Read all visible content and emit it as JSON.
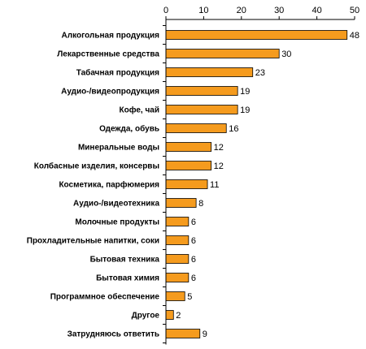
{
  "chart_data": {
    "type": "bar",
    "orientation": "horizontal",
    "title": "",
    "xlabel": "",
    "ylabel": "",
    "xlim": [
      0,
      50
    ],
    "xticks": [
      0,
      10,
      20,
      30,
      40,
      50
    ],
    "x_axis_position": "top",
    "grid": false,
    "legend": "none",
    "bar_color": "#F59B1E",
    "categories": [
      "Алкогольная продукция",
      "Лекарственные средства",
      "Табачная продукция",
      "Аудио-/видеопродукция",
      "Кофе, чай",
      "Одежда, обувь",
      "Минеральные воды",
      "Колбасные изделия, консервы",
      "Косметика, парфюмерия",
      "Аудио-/видеотехника",
      "Молочные продукты",
      "Прохладительные напитки, соки",
      "Бытовая техника",
      "Бытовая химия",
      "Программное обеспечение",
      "Другое",
      "Затрудняюсь ответить"
    ],
    "values": [
      48,
      30,
      23,
      19,
      19,
      16,
      12,
      12,
      11,
      8,
      6,
      6,
      6,
      6,
      5,
      2,
      9
    ]
  }
}
